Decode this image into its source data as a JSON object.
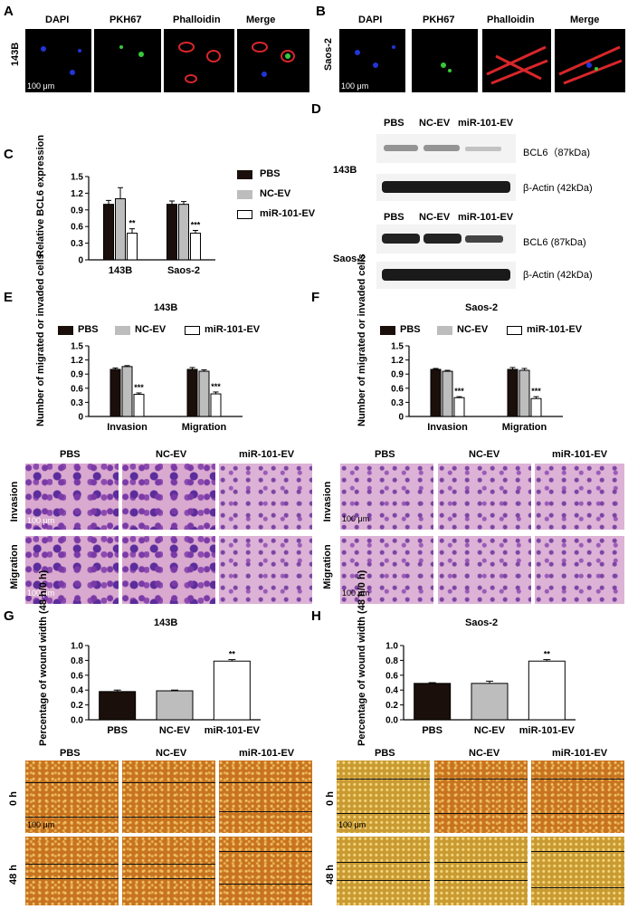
{
  "panels": {
    "A": "A",
    "B": "B",
    "C": "C",
    "D": "D",
    "E": "E",
    "F": "F",
    "G": "G",
    "H": "H"
  },
  "fluor_cols": [
    "DAPI",
    "PKH67",
    "Phalloidin",
    "Merge"
  ],
  "cell_lines": {
    "a": "143B",
    "b": "Saos-2"
  },
  "scale_bar": "100 μm",
  "groups": [
    "PBS",
    "NC-EV",
    "miR-101-EV"
  ],
  "blot_labels": {
    "bcl6": "BCL6（87kDa)",
    "actin": "β-Actin (42kDa)",
    "bcl6_b": "BCL6  (87kDa)"
  },
  "transwell_rows": [
    "Invasion",
    "Migration"
  ],
  "wound_rows": [
    "0 h",
    "48 h"
  ],
  "ylabels": {
    "c": "Relative BCL6 expression",
    "ef": "Number of migrated or invaded cells",
    "gh": "Percentage of wound width (48 h/0 h)"
  },
  "colors": {
    "PBS": "#1a0f0a",
    "NC-EV": "#bdbdbd",
    "miR-101-EV": "#ffffff"
  },
  "chart_data": [
    {
      "id": "C",
      "type": "bar",
      "categories": [
        "143B",
        "Saos-2"
      ],
      "ylim": [
        0,
        1.5
      ],
      "yticks": [
        "0",
        "0.3",
        "0.6",
        "0.9",
        "1.2",
        "1.5"
      ],
      "series": [
        {
          "name": "PBS",
          "values": [
            1.0,
            1.0
          ],
          "err": [
            0.07,
            0.06
          ]
        },
        {
          "name": "NC-EV",
          "values": [
            1.1,
            1.0
          ],
          "err": [
            0.2,
            0.05
          ]
        },
        {
          "name": "miR-101-EV",
          "values": [
            0.48,
            0.48
          ],
          "err": [
            0.08,
            0.05
          ]
        }
      ],
      "annotations": [
        [
          "**",
          "***"
        ]
      ],
      "ylabel": "Relative BCL6 expression"
    },
    {
      "id": "E",
      "type": "bar",
      "title": "143B",
      "categories": [
        "Invasion",
        "Migration"
      ],
      "ylim": [
        0,
        1.5
      ],
      "yticks": [
        "0",
        "0.3",
        "0.6",
        "0.9",
        "1.2",
        "1.5"
      ],
      "series": [
        {
          "name": "PBS",
          "values": [
            1.0,
            1.0
          ],
          "err": [
            0.03,
            0.04
          ]
        },
        {
          "name": "NC-EV",
          "values": [
            1.06,
            0.96
          ],
          "err": [
            0.02,
            0.03
          ]
        },
        {
          "name": "miR-101-EV",
          "values": [
            0.47,
            0.48
          ],
          "err": [
            0.03,
            0.04
          ]
        }
      ],
      "annotations": [
        [
          "***",
          "***"
        ]
      ],
      "ylabel": "Number of migrated or invaded cells"
    },
    {
      "id": "F",
      "type": "bar",
      "title": "Saos-2",
      "categories": [
        "Invasion",
        "Migration"
      ],
      "ylim": [
        0,
        1.5
      ],
      "yticks": [
        "0",
        "0.3",
        "0.6",
        "0.9",
        "1.2",
        "1.5"
      ],
      "series": [
        {
          "name": "PBS",
          "values": [
            1.0,
            1.0
          ],
          "err": [
            0.02,
            0.04
          ]
        },
        {
          "name": "NC-EV",
          "values": [
            0.96,
            0.98
          ],
          "err": [
            0.02,
            0.04
          ]
        },
        {
          "name": "miR-101-EV",
          "values": [
            0.4,
            0.38
          ],
          "err": [
            0.02,
            0.04
          ]
        }
      ],
      "annotations": [
        [
          "***",
          "***"
        ]
      ],
      "ylabel": "Number of migrated or invaded cells"
    },
    {
      "id": "G",
      "type": "bar",
      "title": "143B",
      "categories": [
        "PBS",
        "NC-EV",
        "miR-101-EV"
      ],
      "ylim": [
        0,
        1.0
      ],
      "yticks": [
        "0.0",
        "0.2",
        "0.4",
        "0.6",
        "0.8",
        "1.0"
      ],
      "values": [
        0.38,
        0.39,
        0.79
      ],
      "err": [
        0.02,
        0.01,
        0.02
      ],
      "annotations": [
        "",
        "",
        "**"
      ],
      "ylabel": "Percentage of wound width (48 h/0 h)"
    },
    {
      "id": "H",
      "type": "bar",
      "title": "Saos-2",
      "categories": [
        "PBS",
        "NC-EV",
        "miR-101-EV"
      ],
      "ylim": [
        0,
        1.0
      ],
      "yticks": [
        "0.0",
        "0.2",
        "0.4",
        "0.6",
        "0.8",
        "1.0"
      ],
      "values": [
        0.49,
        0.49,
        0.79
      ],
      "err": [
        0.01,
        0.03,
        0.02
      ],
      "annotations": [
        "",
        "",
        "**"
      ],
      "ylabel": "Percentage of wound width (48 h/0 h)"
    }
  ]
}
